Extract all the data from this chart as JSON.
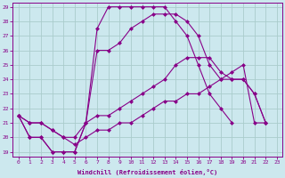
{
  "xlabel": "Windchill (Refroidissement éolien,°C)",
  "background_color": "#cce8ee",
  "grid_color": "#aacccc",
  "line_color": "#880088",
  "xlim": [
    -0.5,
    23.5
  ],
  "ylim": [
    18.7,
    29.3
  ],
  "xticks": [
    0,
    1,
    2,
    3,
    4,
    5,
    6,
    7,
    8,
    9,
    10,
    11,
    12,
    13,
    14,
    15,
    16,
    17,
    18,
    19,
    20,
    21,
    22,
    23
  ],
  "yticks": [
    19,
    20,
    21,
    22,
    23,
    24,
    25,
    26,
    27,
    28,
    29
  ],
  "line1_x": [
    0,
    1,
    2,
    3,
    4,
    5,
    6,
    7,
    8,
    9,
    10,
    11,
    12,
    13,
    14,
    15,
    16,
    17,
    18,
    19
  ],
  "line1_y": [
    21.5,
    20.0,
    20.0,
    19.0,
    19.0,
    19.0,
    21.0,
    27.5,
    29.0,
    29.0,
    29.0,
    29.0,
    29.0,
    29.0,
    28.0,
    27.0,
    25.0,
    23.0,
    22.0,
    21.0
  ],
  "line2_x": [
    0,
    1,
    2,
    3,
    4,
    5,
    6,
    7,
    8,
    9,
    10,
    11,
    12,
    13,
    14,
    15,
    16,
    17,
    18,
    19,
    20,
    21,
    22
  ],
  "line2_y": [
    21.5,
    20.0,
    20.0,
    19.0,
    19.0,
    19.0,
    21.0,
    26.0,
    26.0,
    26.5,
    27.5,
    28.0,
    28.5,
    28.5,
    28.5,
    28.0,
    27.0,
    25.0,
    24.0,
    24.0,
    24.0,
    23.0,
    21.0
  ],
  "line3_x": [
    0,
    1,
    2,
    3,
    4,
    5,
    6,
    7,
    8,
    9,
    10,
    11,
    12,
    13,
    14,
    15,
    16,
    17,
    18,
    19,
    20,
    21,
    22
  ],
  "line3_y": [
    21.5,
    21.0,
    21.0,
    20.5,
    20.0,
    20.0,
    21.0,
    21.5,
    21.5,
    22.0,
    22.5,
    23.0,
    23.5,
    24.0,
    25.0,
    25.5,
    25.5,
    25.5,
    24.5,
    24.0,
    24.0,
    23.0,
    21.0
  ],
  "line4_x": [
    0,
    1,
    2,
    3,
    4,
    5,
    6,
    7,
    8,
    9,
    10,
    11,
    12,
    13,
    14,
    15,
    16,
    17,
    18,
    19,
    20,
    21,
    22
  ],
  "line4_y": [
    21.5,
    21.0,
    21.0,
    20.5,
    20.0,
    19.5,
    20.0,
    20.5,
    20.5,
    21.0,
    21.0,
    21.5,
    22.0,
    22.5,
    22.5,
    23.0,
    23.0,
    23.5,
    24.0,
    24.5,
    25.0,
    21.0,
    21.0
  ]
}
